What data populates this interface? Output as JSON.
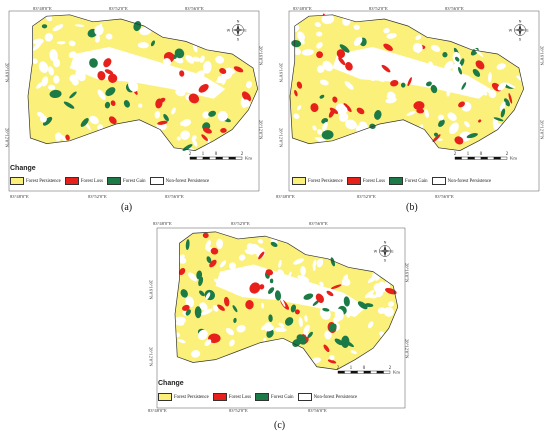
{
  "panels": [
    {
      "caption": "(a)",
      "top_coords": [
        "83°48'0\"E",
        "83°52'0\"E",
        "83°56'0\"E"
      ],
      "bottom_coords": [
        "83°48'0\"E",
        "83°52'0\"E",
        "83°56'0\"E"
      ],
      "left_coords": [
        "28°16'0\"N",
        "28°12'0\"N"
      ],
      "right_coords": [
        "28°16'0\"N",
        "28°12'0\"N"
      ]
    },
    {
      "caption": "(b)",
      "top_coords": [
        "83°48'0\"E",
        "83°52'0\"E",
        "83°56'0\"E"
      ],
      "bottom_coords": [
        "83°48'0\"E",
        "83°52'0\"E",
        "83°56'0\"E"
      ],
      "left_coords": [
        "28°16'0\"N",
        "28°12'0\"N"
      ],
      "right_coords": [
        "28°16'0\"N",
        "28°12'0\"N"
      ]
    },
    {
      "caption": "(c)",
      "top_coords": [
        "83°48'0\"E",
        "83°52'0\"E",
        "83°56'0\"E"
      ],
      "bottom_coords": [
        "83°48'0\"E",
        "83°52'0\"E",
        "83°56'0\"E"
      ],
      "left_coords": [
        "28°16'0\"N",
        "28°12'0\"N"
      ],
      "right_coords": [
        "28°16'0\"N",
        "28°12'0\"N"
      ]
    }
  ],
  "legend": {
    "title": "Change",
    "items": [
      {
        "label": "Forest Persistence",
        "color": "#fbf17a"
      },
      {
        "label": "Forest Loss",
        "color": "#e8201c"
      },
      {
        "label": "Forest Gain",
        "color": "#1b7a46"
      },
      {
        "label": "Non-forest Persistence",
        "color": "#ffffff"
      }
    ]
  },
  "scale_bar": {
    "ticks": [
      "2",
      "1",
      "0",
      "2"
    ],
    "unit": "Km"
  },
  "north_arrow": {
    "n": "N",
    "s": "S",
    "e": "E",
    "w": "W",
    "icon": "compass-rose-icon"
  }
}
